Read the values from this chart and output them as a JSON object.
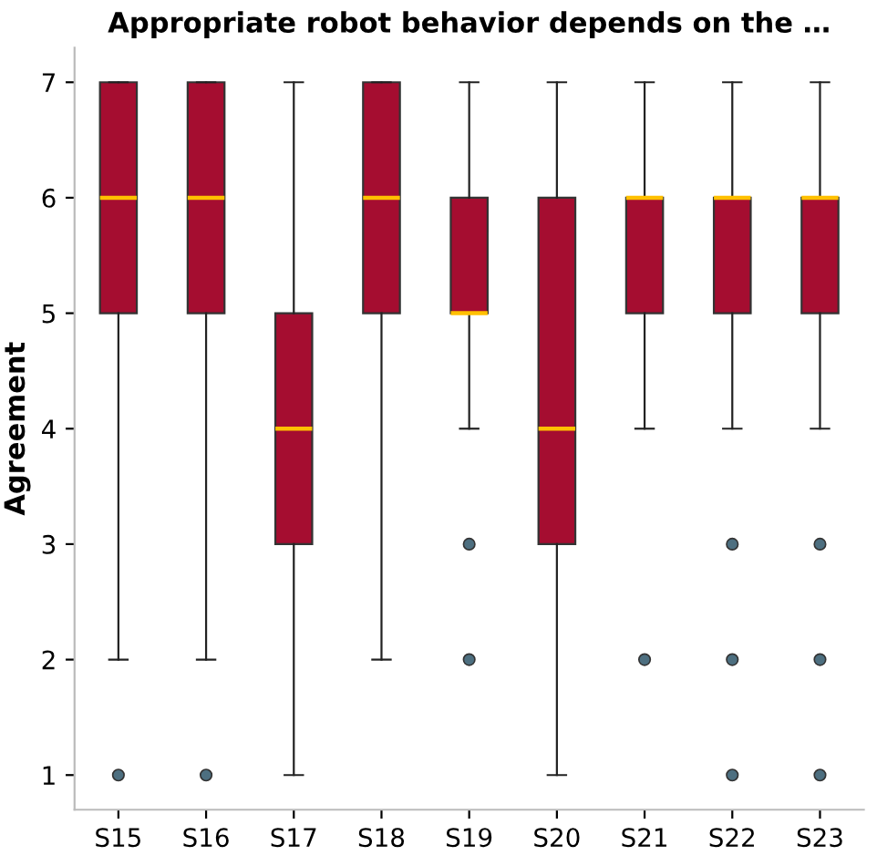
{
  "chart_data": {
    "type": "box",
    "title": "Appropriate robot behavior depends on the …",
    "ylabel": "Agreement",
    "categories": [
      "S15",
      "S16",
      "S17",
      "S18",
      "S19",
      "S20",
      "S21",
      "S22",
      "S23"
    ],
    "boxes": [
      {
        "low": 2,
        "q1": 5,
        "median": 6,
        "q3": 7,
        "high": 7,
        "outliers": [
          1
        ]
      },
      {
        "low": 2,
        "q1": 5,
        "median": 6,
        "q3": 7,
        "high": 7,
        "outliers": [
          1
        ]
      },
      {
        "low": 1,
        "q1": 3,
        "median": 4,
        "q3": 5,
        "high": 7
      },
      {
        "low": 2,
        "q1": 5,
        "median": 6,
        "q3": 7,
        "high": 7
      },
      {
        "low": 4,
        "q1": 5,
        "median": 5,
        "q3": 6,
        "high": 7,
        "outliers": [
          3,
          2
        ]
      },
      {
        "low": 1,
        "q1": 3,
        "median": 4,
        "q3": 6,
        "high": 7
      },
      {
        "low": 4,
        "q1": 5,
        "median": 6,
        "q3": 6,
        "high": 7,
        "outliers": [
          2
        ]
      },
      {
        "low": 4,
        "q1": 5,
        "median": 6,
        "q3": 6,
        "high": 7,
        "outliers": [
          3,
          2,
          1
        ]
      },
      {
        "low": 4,
        "q1": 5,
        "median": 6,
        "q3": 6,
        "high": 7,
        "outliers": [
          3,
          2,
          1
        ]
      }
    ],
    "color": "#a50d30",
    "ylim": [
      0.7,
      7.3
    ],
    "yticks": [
      1,
      2,
      3,
      4,
      5,
      6,
      7
    ],
    "grid": false
  }
}
